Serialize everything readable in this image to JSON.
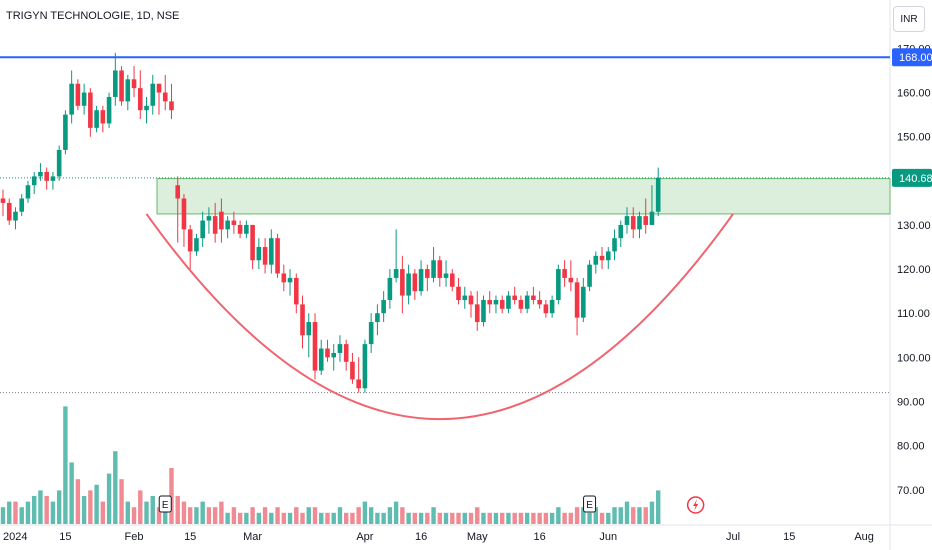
{
  "header": {
    "title": "TRIGYN TECHNOLOGIE, 1D, NSE",
    "currency": "INR"
  },
  "chart_data": {
    "type": "candlestick",
    "y_axis": {
      "min": 67,
      "max": 171,
      "ticks": [
        70,
        80,
        90,
        100,
        110,
        120,
        130,
        140,
        150,
        160,
        170
      ]
    },
    "x_axis": {
      "labels": [
        {
          "text": "2024",
          "i": 0
        },
        {
          "text": "15",
          "i": 10
        },
        {
          "text": "Feb",
          "i": 21
        },
        {
          "text": "15",
          "i": 30
        },
        {
          "text": "Mar",
          "i": 40
        },
        {
          "text": "Apr",
          "i": 58
        },
        {
          "text": "16",
          "i": 67
        },
        {
          "text": "May",
          "i": 76
        },
        {
          "text": "16",
          "i": 86
        },
        {
          "text": "Jun",
          "i": 97
        },
        {
          "text": "Jul",
          "i": 117
        },
        {
          "text": "15",
          "i": 126
        },
        {
          "text": "Aug",
          "i": 138
        }
      ]
    },
    "price_labels": [
      {
        "value": 168,
        "text": "168.00",
        "color": "#2962ff"
      },
      {
        "value": 140.68,
        "text": "140.68",
        "color": "#089981"
      }
    ],
    "levels": {
      "resistance": 168,
      "support": 92,
      "last_price": 140.68
    },
    "zone": {
      "low": 132.5,
      "high": 140.5,
      "from_i": 25
    },
    "cup_curve": [
      {
        "i": 23,
        "v": 132.5
      },
      {
        "i": 70,
        "v": 86.0
      },
      {
        "i": 117,
        "v": 132.5
      }
    ],
    "earnings_markers": [
      {
        "i": 26,
        "text": "E"
      },
      {
        "i": 94,
        "text": "E"
      }
    ],
    "dividend_marker": {
      "i": 111
    },
    "candles": [
      [
        136,
        138,
        132,
        135
      ],
      [
        135,
        136,
        130,
        131
      ],
      [
        131,
        134,
        129,
        133
      ],
      [
        133,
        137,
        132,
        136
      ],
      [
        136,
        140,
        135,
        139
      ],
      [
        139,
        142,
        137,
        141
      ],
      [
        141,
        144,
        140,
        142
      ],
      [
        142,
        143,
        138,
        140
      ],
      [
        140,
        142,
        138,
        141
      ],
      [
        141,
        148,
        140,
        147
      ],
      [
        147,
        156,
        146,
        155
      ],
      [
        155,
        165,
        153,
        162
      ],
      [
        162,
        163,
        156,
        157
      ],
      [
        157,
        162,
        155,
        160
      ],
      [
        160,
        161,
        150,
        152
      ],
      [
        152,
        157,
        151,
        156
      ],
      [
        156,
        157,
        151,
        153
      ],
      [
        153,
        160,
        152,
        159
      ],
      [
        159,
        169,
        157,
        165
      ],
      [
        165,
        166,
        157,
        158
      ],
      [
        158,
        164,
        156,
        163
      ],
      [
        163,
        166,
        159,
        161
      ],
      [
        161,
        165,
        154,
        156
      ],
      [
        156,
        159,
        153,
        157
      ],
      [
        157,
        164,
        155,
        162
      ],
      [
        162,
        162,
        155,
        160
      ],
      [
        160,
        164,
        156,
        158
      ],
      [
        158,
        162,
        154,
        156
      ],
      [
        139,
        141,
        126,
        136
      ],
      [
        136,
        137,
        125,
        129
      ],
      [
        129,
        130,
        120,
        124
      ],
      [
        124,
        128,
        123,
        127
      ],
      [
        127,
        133,
        125,
        131
      ],
      [
        131,
        134,
        128,
        132
      ],
      [
        132,
        135,
        126,
        128
      ],
      [
        133,
        136,
        126,
        129
      ],
      [
        129,
        132,
        127,
        131
      ],
      [
        131,
        133,
        128,
        130
      ],
      [
        130,
        131,
        127,
        128
      ],
      [
        128,
        131,
        127,
        130
      ],
      [
        130,
        130,
        120,
        122
      ],
      [
        122,
        127,
        120,
        125
      ],
      [
        125,
        127,
        119,
        121
      ],
      [
        121,
        129,
        119,
        127
      ],
      [
        127,
        128,
        118,
        119
      ],
      [
        119,
        121,
        115,
        117
      ],
      [
        117,
        120,
        114,
        118
      ],
      [
        118,
        119,
        110,
        112
      ],
      [
        112,
        114,
        102,
        105
      ],
      [
        105,
        110,
        100,
        108
      ],
      [
        108,
        110,
        95,
        97
      ],
      [
        97,
        104,
        96,
        102
      ],
      [
        102,
        104,
        99,
        100
      ],
      [
        100,
        103,
        97,
        101
      ],
      [
        101,
        105,
        99,
        103
      ],
      [
        103,
        104,
        97,
        99
      ],
      [
        99,
        101,
        94,
        95
      ],
      [
        95,
        100,
        92,
        93
      ],
      [
        93,
        104,
        92,
        103
      ],
      [
        103,
        110,
        101,
        108
      ],
      [
        108,
        112,
        105,
        110
      ],
      [
        110,
        115,
        108,
        113
      ],
      [
        113,
        120,
        111,
        118
      ],
      [
        118,
        129,
        117,
        120
      ],
      [
        120,
        123,
        110,
        114
      ],
      [
        114,
        121,
        112,
        119
      ],
      [
        119,
        120,
        113,
        115
      ],
      [
        115,
        122,
        114,
        120
      ],
      [
        120,
        121,
        115,
        118
      ],
      [
        118,
        125,
        117,
        122
      ],
      [
        122,
        123,
        116,
        118
      ],
      [
        118,
        122,
        116,
        119
      ],
      [
        119,
        120,
        115,
        116
      ],
      [
        116,
        118,
        112,
        113
      ],
      [
        113,
        116,
        111,
        114
      ],
      [
        114,
        115,
        109,
        112
      ],
      [
        112,
        115,
        106,
        108
      ],
      [
        108,
        114,
        107,
        113
      ],
      [
        113,
        115,
        110,
        112
      ],
      [
        112,
        114,
        110,
        113
      ],
      [
        113,
        114,
        110,
        111
      ],
      [
        111,
        115,
        110,
        114
      ],
      [
        114,
        116,
        112,
        113
      ],
      [
        113,
        114,
        110,
        111
      ],
      [
        111,
        115,
        110,
        114
      ],
      [
        114,
        116,
        112,
        113
      ],
      [
        113,
        115,
        111,
        112
      ],
      [
        112,
        113,
        109,
        110
      ],
      [
        110,
        114,
        109,
        113
      ],
      [
        113,
        121,
        112,
        120
      ],
      [
        120,
        122,
        116,
        118
      ],
      [
        118,
        122,
        115,
        117
      ],
      [
        117,
        118,
        105,
        109
      ],
      [
        109,
        118,
        108,
        116
      ],
      [
        116,
        122,
        115,
        121
      ],
      [
        121,
        124,
        119,
        123
      ],
      [
        123,
        125,
        120,
        122
      ],
      [
        122,
        125,
        120,
        124
      ],
      [
        124,
        129,
        122,
        127
      ],
      [
        127,
        131,
        125,
        130
      ],
      [
        130,
        134,
        128,
        132
      ],
      [
        132,
        134,
        127,
        129
      ],
      [
        129,
        133,
        127,
        132
      ],
      [
        132,
        136,
        128,
        130
      ],
      [
        130,
        139,
        130,
        133
      ],
      [
        133,
        143,
        132,
        140.7
      ]
    ],
    "volume": [
      [
        3,
        1
      ],
      [
        4,
        1
      ],
      [
        4,
        0
      ],
      [
        3,
        1
      ],
      [
        4,
        1
      ],
      [
        5,
        1
      ],
      [
        6,
        1
      ],
      [
        5,
        0
      ],
      [
        4,
        1
      ],
      [
        6,
        1
      ],
      [
        21,
        1
      ],
      [
        11,
        1
      ],
      [
        8,
        0
      ],
      [
        5,
        1
      ],
      [
        6,
        0
      ],
      [
        7,
        1
      ],
      [
        4,
        0
      ],
      [
        9,
        1
      ],
      [
        13,
        1
      ],
      [
        8,
        0
      ],
      [
        4,
        1
      ],
      [
        3,
        0
      ],
      [
        6,
        0
      ],
      [
        4,
        1
      ],
      [
        5,
        1
      ],
      [
        3,
        0
      ],
      [
        4,
        1
      ],
      [
        10,
        0
      ],
      [
        5,
        0
      ],
      [
        4,
        0
      ],
      [
        3,
        0
      ],
      [
        3,
        1
      ],
      [
        4,
        1
      ],
      [
        3,
        0
      ],
      [
        3,
        0
      ],
      [
        4,
        0
      ],
      [
        2,
        1
      ],
      [
        3,
        0
      ],
      [
        2,
        0
      ],
      [
        2,
        1
      ],
      [
        3,
        0
      ],
      [
        2,
        1
      ],
      [
        3,
        0
      ],
      [
        2,
        1
      ],
      [
        3,
        0
      ],
      [
        2,
        0
      ],
      [
        2,
        1
      ],
      [
        3,
        0
      ],
      [
        2,
        0
      ],
      [
        3,
        1
      ],
      [
        3,
        0
      ],
      [
        2,
        1
      ],
      [
        2,
        0
      ],
      [
        2,
        1
      ],
      [
        3,
        1
      ],
      [
        2,
        0
      ],
      [
        2,
        0
      ],
      [
        3,
        0
      ],
      [
        4,
        1
      ],
      [
        3,
        1
      ],
      [
        2,
        1
      ],
      [
        2,
        1
      ],
      [
        3,
        1
      ],
      [
        4,
        1
      ],
      [
        3,
        0
      ],
      [
        2,
        1
      ],
      [
        2,
        0
      ],
      [
        2,
        1
      ],
      [
        2,
        0
      ],
      [
        3,
        1
      ],
      [
        2,
        0
      ],
      [
        2,
        1
      ],
      [
        2,
        0
      ],
      [
        2,
        0
      ],
      [
        2,
        1
      ],
      [
        2,
        0
      ],
      [
        3,
        0
      ],
      [
        2,
        1
      ],
      [
        2,
        0
      ],
      [
        2,
        1
      ],
      [
        2,
        0
      ],
      [
        2,
        1
      ],
      [
        2,
        0
      ],
      [
        2,
        0
      ],
      [
        2,
        1
      ],
      [
        2,
        0
      ],
      [
        2,
        0
      ],
      [
        2,
        0
      ],
      [
        2,
        1
      ],
      [
        3,
        1
      ],
      [
        2,
        0
      ],
      [
        2,
        0
      ],
      [
        3,
        0
      ],
      [
        3,
        1
      ],
      [
        2,
        1
      ],
      [
        3,
        1
      ],
      [
        2,
        0
      ],
      [
        2,
        1
      ],
      [
        3,
        1
      ],
      [
        3,
        1
      ],
      [
        4,
        1
      ],
      [
        3,
        0
      ],
      [
        3,
        1
      ],
      [
        3,
        0
      ],
      [
        4,
        1
      ],
      [
        6,
        1
      ]
    ]
  }
}
